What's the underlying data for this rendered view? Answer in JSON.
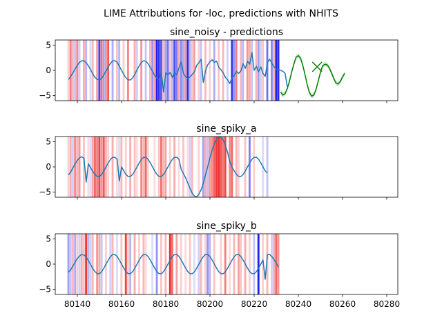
{
  "figure": {
    "suptitle": "LIME Attributions for -loc, predictions with NHITS"
  },
  "chart_data": [
    {
      "type": "line",
      "title": "sine_noisy - predictions",
      "xlim": [
        80130,
        80285
      ],
      "ylim": [
        -6,
        6
      ],
      "yticks": [
        5,
        0,
        -5
      ],
      "xticks": [
        80140,
        80160,
        80180,
        80200,
        80220,
        80240,
        80260,
        80280
      ],
      "show_xticklabels": false,
      "history_x_start": 80136,
      "history": [
        -1.8,
        -1.2,
        -0.5,
        0.3,
        1.0,
        1.6,
        1.9,
        1.9,
        1.5,
        0.9,
        0.1,
        -0.7,
        -1.4,
        -1.8,
        -1.9,
        -1.6,
        -0.9,
        -0.1,
        0.7,
        1.4,
        1.9,
        1.9,
        1.6,
        0.8,
        0.0,
        -0.8,
        -1.5,
        -1.9,
        -1.9,
        -1.5,
        -0.8,
        0.1,
        0.9,
        1.6,
        1.9,
        1.8,
        1.3,
        0.6,
        -0.2,
        -1.0,
        -1.6,
        -1.9,
        -0.4,
        -4.3,
        -0.5,
        -0.9,
        -0.4,
        -1.4,
        -0.4,
        -0.9,
        0.5,
        1.7,
        -0.6,
        -1.3,
        -1.6,
        -1.3,
        -0.8,
        -0.3,
        1.0,
        1.5,
        2.2,
        -2.4,
        -0.1,
        1.1,
        1.7,
        2.1,
        1.6,
        1.8,
        0.6,
        0.1,
        -0.5,
        -1.4,
        -1.9,
        -2.6,
        -1.5,
        -1.0,
        -0.2,
        -0.6,
        -0.1,
        1.3,
        0.4,
        1.8,
        1.2,
        3.5,
        0.0,
        0.8,
        -0.3,
        0.7,
        -0.6,
        -1.2,
        1.5,
        2.2,
        1.4,
        0.7,
        0.2,
        0.2,
        0.0,
        -0.2,
        -0.6,
        -3.2
      ],
      "forecast_x_start": 80232,
      "forecast": [
        -4.3,
        -4.9,
        -4.6,
        -3.6,
        -2.1,
        -0.3,
        1.3,
        2.6,
        2.9,
        2.4,
        1.0,
        -0.8,
        -2.8,
        -4.4,
        -5.1,
        -4.9,
        -3.8,
        -2.1,
        -0.4,
        0.9,
        1.2,
        1.1,
        0.5,
        -0.5,
        -1.6,
        -2.5,
        -2.7,
        -2.2,
        -1.3,
        -0.6
      ],
      "forecast_band": 0.45,
      "marker": {
        "x": 80248.5,
        "y": 0.7
      },
      "colors": {
        "history": "#1f77b4",
        "forecast": "#008000",
        "marker": "#008000"
      },
      "attributions": [
        {
          "x": 80136,
          "w": 0.2
        },
        {
          "x": 80137,
          "w": 0.55
        },
        {
          "x": 80138,
          "w": 0.3
        },
        {
          "x": 80139,
          "w": -0.25
        },
        {
          "x": 80140,
          "w": 0.5
        },
        {
          "x": 80141,
          "w": -0.2
        },
        {
          "x": 80143,
          "w": 0.35
        },
        {
          "x": 80144,
          "w": -0.3
        },
        {
          "x": 80146,
          "w": -0.15
        },
        {
          "x": 80147,
          "w": 0.3
        },
        {
          "x": 80149,
          "w": 0.4
        },
        {
          "x": 80150,
          "w": -0.8
        },
        {
          "x": 80151,
          "w": 0.6
        },
        {
          "x": 80152,
          "w": -0.4
        },
        {
          "x": 80153,
          "w": 0.45
        },
        {
          "x": 80154,
          "w": 0.7
        },
        {
          "x": 80156,
          "w": -0.35
        },
        {
          "x": 80158,
          "w": 0.25
        },
        {
          "x": 80159,
          "w": -0.3
        },
        {
          "x": 80161,
          "w": 0.2
        },
        {
          "x": 80163,
          "w": 0.5
        },
        {
          "x": 80166,
          "w": 0.35
        },
        {
          "x": 80167,
          "w": -0.2
        },
        {
          "x": 80169,
          "w": 0.45
        },
        {
          "x": 80171,
          "w": -0.25
        },
        {
          "x": 80173,
          "w": 0.3
        },
        {
          "x": 80174,
          "w": -0.45
        },
        {
          "x": 80175,
          "w": 0.4
        },
        {
          "x": 80176,
          "w": -0.95
        },
        {
          "x": 80177,
          "w": -0.85
        },
        {
          "x": 80178,
          "w": -0.7
        },
        {
          "x": 80179,
          "w": 0.3
        },
        {
          "x": 80180,
          "w": -0.4
        },
        {
          "x": 80181,
          "w": -0.6
        },
        {
          "x": 80182,
          "w": 0.25
        },
        {
          "x": 80183,
          "w": -0.3
        },
        {
          "x": 80184,
          "w": -0.75
        },
        {
          "x": 80185,
          "w": -0.55
        },
        {
          "x": 80186,
          "w": 0.35
        },
        {
          "x": 80187,
          "w": -0.5
        },
        {
          "x": 80188,
          "w": -0.35
        },
        {
          "x": 80189,
          "w": 0.45
        },
        {
          "x": 80190,
          "w": -0.9
        },
        {
          "x": 80191,
          "w": -0.3
        },
        {
          "x": 80192,
          "w": 0.25
        },
        {
          "x": 80193,
          "w": 0.4
        },
        {
          "x": 80195,
          "w": 0.2
        },
        {
          "x": 80196,
          "w": -0.25
        },
        {
          "x": 80198,
          "w": 0.3
        },
        {
          "x": 80200,
          "w": 0.2
        },
        {
          "x": 80202,
          "w": -0.35
        },
        {
          "x": 80204,
          "w": 0.25
        },
        {
          "x": 80206,
          "w": 0.3
        },
        {
          "x": 80208,
          "w": -0.2
        },
        {
          "x": 80210,
          "w": -0.85
        },
        {
          "x": 80211,
          "w": -0.45
        },
        {
          "x": 80212,
          "w": 0.55
        },
        {
          "x": 80214,
          "w": 0.3
        },
        {
          "x": 80215,
          "w": -0.3
        },
        {
          "x": 80217,
          "w": 0.45
        },
        {
          "x": 80218,
          "w": 0.35
        },
        {
          "x": 80219,
          "w": -0.25
        },
        {
          "x": 80221,
          "w": 0.3
        },
        {
          "x": 80222,
          "w": -0.4
        },
        {
          "x": 80223,
          "w": -0.2
        },
        {
          "x": 80224,
          "w": 0.25
        },
        {
          "x": 80226,
          "w": -0.6
        },
        {
          "x": 80228,
          "w": -0.5
        },
        {
          "x": 80229,
          "w": 0.35
        },
        {
          "x": 80230,
          "w": -0.95
        },
        {
          "x": 80231,
          "w": -0.9
        }
      ]
    },
    {
      "type": "line",
      "title": "sine_spiky_a",
      "xlim": [
        80130,
        80285
      ],
      "ylim": [
        -6,
        6
      ],
      "yticks": [
        5,
        0,
        -5
      ],
      "xticks": [
        80140,
        80160,
        80180,
        80200,
        80220,
        80240,
        80260,
        80280
      ],
      "show_xticklabels": false,
      "history_x_start": 80136,
      "history": [
        -1.6,
        -1.0,
        -0.2,
        0.6,
        1.3,
        1.8,
        2.0,
        1.7,
        -3.0,
        0.6,
        -0.2,
        -0.9,
        -1.5,
        -1.9,
        -1.9,
        -1.5,
        -0.8,
        0.0,
        0.8,
        1.5,
        1.9,
        1.9,
        1.5,
        -2.8,
        0.0,
        -0.8,
        -1.5,
        -1.9,
        -1.9,
        -1.5,
        -0.8,
        0.0,
        0.8,
        1.5,
        1.9,
        1.9,
        1.5,
        0.8,
        0.0,
        -0.8,
        -1.5,
        -1.9,
        -1.9,
        -1.5,
        -0.8,
        0.0,
        0.8,
        1.5,
        1.9,
        1.9,
        1.5,
        -0.5,
        -1.3,
        -2.2,
        -3.2,
        -4.3,
        -5.2,
        -5.8,
        -5.9,
        -5.4,
        -4.5,
        -3.2,
        -1.6,
        0.1,
        1.8,
        3.3,
        4.6,
        5.5,
        5.9,
        5.9,
        5.3,
        4.3,
        2.8,
        1.0,
        -0.1,
        -0.8,
        -1.5,
        -1.9,
        -1.9,
        -1.5,
        -0.8,
        0.0,
        0.8,
        1.5,
        1.9,
        1.9,
        1.5,
        0.8,
        0.0,
        -0.8,
        -1.2
      ],
      "attributions": [
        {
          "x": 80136,
          "w": 0.2
        },
        {
          "x": 80137,
          "w": 0.35
        },
        {
          "x": 80138,
          "w": -0.2
        },
        {
          "x": 80139,
          "w": 0.5
        },
        {
          "x": 80140,
          "w": 0.3
        },
        {
          "x": 80141,
          "w": 0.45
        },
        {
          "x": 80143,
          "w": 0.25
        },
        {
          "x": 80145,
          "w": 0.15
        },
        {
          "x": 80146,
          "w": -0.15
        },
        {
          "x": 80147,
          "w": 0.4
        },
        {
          "x": 80148,
          "w": 0.65
        },
        {
          "x": 80149,
          "w": 0.55
        },
        {
          "x": 80150,
          "w": 0.8
        },
        {
          "x": 80151,
          "w": 0.45
        },
        {
          "x": 80152,
          "w": 0.7
        },
        {
          "x": 80153,
          "w": 0.3
        },
        {
          "x": 80154,
          "w": 0.2
        },
        {
          "x": 80156,
          "w": 0.35
        },
        {
          "x": 80158,
          "w": 0.15
        },
        {
          "x": 80159,
          "w": -0.15
        },
        {
          "x": 80160,
          "w": 0.3
        },
        {
          "x": 80162,
          "w": 0.2
        },
        {
          "x": 80164,
          "w": 0.35
        },
        {
          "x": 80166,
          "w": 0.25
        },
        {
          "x": 80167,
          "w": 0.15
        },
        {
          "x": 80169,
          "w": 0.5
        },
        {
          "x": 80170,
          "w": 0.3
        },
        {
          "x": 80171,
          "w": 0.65
        },
        {
          "x": 80172,
          "w": 0.2
        },
        {
          "x": 80175,
          "w": 0.15
        },
        {
          "x": 80177,
          "w": 0.25
        },
        {
          "x": 80178,
          "w": 0.6
        },
        {
          "x": 80179,
          "w": 0.3
        },
        {
          "x": 80180,
          "w": 0.4
        },
        {
          "x": 80182,
          "w": 0.2
        },
        {
          "x": 80184,
          "w": 0.35
        },
        {
          "x": 80186,
          "w": 0.15
        },
        {
          "x": 80188,
          "w": 0.25
        },
        {
          "x": 80190,
          "w": 0.15
        },
        {
          "x": 80191,
          "w": -0.2
        },
        {
          "x": 80192,
          "w": 0.3
        },
        {
          "x": 80195,
          "w": 0.2
        },
        {
          "x": 80197,
          "w": -0.4
        },
        {
          "x": 80198,
          "w": 0.35
        },
        {
          "x": 80199,
          "w": -0.25
        },
        {
          "x": 80200,
          "w": 0.45
        },
        {
          "x": 80201,
          "w": 0.5
        },
        {
          "x": 80202,
          "w": 0.7
        },
        {
          "x": 80203,
          "w": 0.85
        },
        {
          "x": 80204,
          "w": 0.9
        },
        {
          "x": 80205,
          "w": 0.75
        },
        {
          "x": 80206,
          "w": 0.6
        },
        {
          "x": 80207,
          "w": 0.8
        },
        {
          "x": 80209,
          "w": 0.5
        },
        {
          "x": 80210,
          "w": 0.65
        },
        {
          "x": 80212,
          "w": 0.3
        },
        {
          "x": 80213,
          "w": 0.2
        },
        {
          "x": 80216,
          "w": 0.25
        },
        {
          "x": 80218,
          "w": -0.55
        },
        {
          "x": 80220,
          "w": 0.2
        },
        {
          "x": 80224,
          "w": -0.15
        },
        {
          "x": 80226,
          "w": -0.25
        }
      ]
    },
    {
      "type": "line",
      "title": "sine_spiky_b",
      "xlim": [
        80130,
        80285
      ],
      "ylim": [
        -6,
        6
      ],
      "yticks": [
        5,
        0,
        -5
      ],
      "xticks": [
        80140,
        80160,
        80180,
        80200,
        80220,
        80240,
        80260,
        80280
      ],
      "xticklabels": [
        "80140",
        "80160",
        "80180",
        "80200",
        "80220",
        "80240",
        "80260",
        "80280"
      ],
      "show_xticklabels": true,
      "history_x_start": 80136,
      "history": [
        -1.6,
        -1.1,
        -0.4,
        0.4,
        1.1,
        1.6,
        1.9,
        1.8,
        1.4,
        0.7,
        -0.1,
        -0.9,
        -1.5,
        -1.9,
        -1.9,
        -1.5,
        -0.8,
        0.0,
        0.8,
        1.5,
        1.9,
        1.9,
        1.5,
        0.8,
        0.0,
        -0.8,
        -1.5,
        -1.9,
        -1.9,
        -1.5,
        -0.8,
        0.0,
        0.8,
        1.5,
        1.9,
        1.9,
        1.5,
        0.8,
        0.0,
        -0.8,
        -1.5,
        -1.9,
        -1.9,
        -1.5,
        -0.8,
        0.0,
        0.8,
        1.5,
        1.9,
        1.9,
        1.5,
        0.8,
        0.0,
        -0.8,
        -1.5,
        -1.9,
        -1.9,
        -1.5,
        -0.8,
        0.0,
        0.8,
        1.5,
        1.9,
        1.9,
        1.5,
        0.8,
        0.0,
        -0.8,
        -1.5,
        -1.9,
        -1.9,
        -1.5,
        -0.8,
        0.0,
        0.8,
        1.5,
        1.9,
        1.9,
        1.5,
        0.8,
        0.0,
        -0.8,
        -1.5,
        -1.9,
        -1.9,
        -1.5,
        -0.8,
        0.0,
        0.8,
        -3.0,
        1.9,
        1.9,
        1.5,
        0.9,
        0.2,
        -0.6
      ],
      "attributions": [
        {
          "x": 80136,
          "w": -0.4
        },
        {
          "x": 80137,
          "w": -0.25
        },
        {
          "x": 80138,
          "w": 0.3
        },
        {
          "x": 80139,
          "w": -0.35
        },
        {
          "x": 80140,
          "w": 0.2
        },
        {
          "x": 80141,
          "w": -0.2
        },
        {
          "x": 80142,
          "w": 0.35
        },
        {
          "x": 80143,
          "w": 0.25
        },
        {
          "x": 80144,
          "w": 0.85
        },
        {
          "x": 80145,
          "w": -0.3
        },
        {
          "x": 80146,
          "w": -0.2
        },
        {
          "x": 80147,
          "w": 0.3
        },
        {
          "x": 80149,
          "w": 0.45
        },
        {
          "x": 80150,
          "w": 0.35
        },
        {
          "x": 80151,
          "w": -0.25
        },
        {
          "x": 80153,
          "w": 0.2
        },
        {
          "x": 80155,
          "w": -0.2
        },
        {
          "x": 80156,
          "w": 0.3
        },
        {
          "x": 80158,
          "w": -0.15
        },
        {
          "x": 80160,
          "w": 0.25
        },
        {
          "x": 80162,
          "w": 0.8
        },
        {
          "x": 80163,
          "w": 0.2
        },
        {
          "x": 80164,
          "w": -0.3
        },
        {
          "x": 80166,
          "w": 0.35
        },
        {
          "x": 80168,
          "w": 0.2
        },
        {
          "x": 80170,
          "w": 0.3
        },
        {
          "x": 80171,
          "w": 0.15
        },
        {
          "x": 80174,
          "w": -0.15
        },
        {
          "x": 80176,
          "w": -0.45
        },
        {
          "x": 80178,
          "w": 0.25
        },
        {
          "x": 80180,
          "w": 0.3
        },
        {
          "x": 80182,
          "w": 0.9
        },
        {
          "x": 80183,
          "w": 0.6
        },
        {
          "x": 80185,
          "w": 0.4
        },
        {
          "x": 80187,
          "w": 0.2
        },
        {
          "x": 80189,
          "w": 0.15
        },
        {
          "x": 80191,
          "w": 0.25
        },
        {
          "x": 80193,
          "w": -0.15
        },
        {
          "x": 80195,
          "w": -0.2
        },
        {
          "x": 80196,
          "w": 0.3
        },
        {
          "x": 80198,
          "w": 0.2
        },
        {
          "x": 80199,
          "w": -0.45
        },
        {
          "x": 80200,
          "w": -0.3
        },
        {
          "x": 80202,
          "w": 0.25
        },
        {
          "x": 80205,
          "w": 0.2
        },
        {
          "x": 80207,
          "w": 0.55
        },
        {
          "x": 80209,
          "w": 0.15
        },
        {
          "x": 80211,
          "w": 0.3
        },
        {
          "x": 80213,
          "w": 0.4
        },
        {
          "x": 80214,
          "w": 0.25
        },
        {
          "x": 80216,
          "w": 0.35
        },
        {
          "x": 80218,
          "w": 0.2
        },
        {
          "x": 80220,
          "w": -0.25
        },
        {
          "x": 80222,
          "w": -0.95
        },
        {
          "x": 80224,
          "w": 0.2
        },
        {
          "x": 80226,
          "w": 0.3
        },
        {
          "x": 80228,
          "w": -0.2
        },
        {
          "x": 80229,
          "w": 0.35
        },
        {
          "x": 80230,
          "w": 0.65
        },
        {
          "x": 80231,
          "w": 0.45
        }
      ]
    }
  ]
}
